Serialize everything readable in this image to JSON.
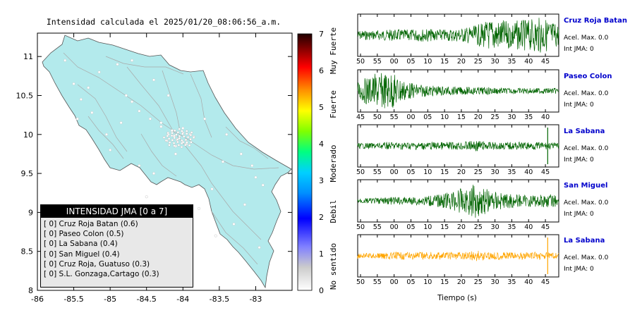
{
  "title": "Intensidad calculada el 2025/01/20_08:06:56_a.m.",
  "colorbar": {
    "ticks": [
      "0",
      "1",
      "2",
      "3",
      "4",
      "5",
      "6",
      "7"
    ],
    "categories": [
      "No sentido",
      "Debil",
      "Moderado",
      "Fuerte",
      "Muy Fuerte"
    ]
  },
  "legend": {
    "title": "INTENSIDAD JMA [0 a 7]",
    "items": [
      "[ 0] Cruz Roja Batan (0.6)",
      "[ 0] Paseo Colon (0.5)",
      "[ 0] La Sabana (0.4)",
      "[ 0] San Miguel (0.4)",
      "[ 0] Cruz Roja, Guatuso (0.3)",
      "[ 0] S.L. Gonzaga,Cartago (0.3)"
    ]
  },
  "stations": [
    {
      "name": "Cruz Roja Batan",
      "accel": "Acel. Max. 0.0",
      "jma": "Int JMA: 0",
      "color": "#006400",
      "ticks": [
        "50",
        "55",
        "00",
        "05",
        "10",
        "15",
        "20",
        "25",
        "30",
        "35",
        "40",
        "45"
      ],
      "t0": 48,
      "amp": [
        0.25,
        0.25,
        0.3,
        0.3,
        0.35,
        0.3,
        0.35,
        0.5,
        0.85,
        0.75,
        0.8,
        0.95,
        0.6
      ]
    },
    {
      "name": "Paseo Colon",
      "accel": "Acel. Max. 0.0",
      "jma": "Int JMA: 0",
      "color": "#006400",
      "ticks": [
        "45",
        "50",
        "55",
        "00",
        "05",
        "10",
        "15",
        "20",
        "25",
        "30",
        "35",
        "40"
      ],
      "t0": 45,
      "amp": [
        0.5,
        0.9,
        1.0,
        0.45,
        0.3,
        0.25,
        0.2,
        0.2,
        0.2,
        0.15,
        0.15,
        0.15,
        0.15
      ]
    },
    {
      "name": "La Sabana",
      "accel": "Acel. Max. 0.0",
      "jma": "Int JMA: 0",
      "color": "#006400",
      "ticks": [
        "50",
        "55",
        "00",
        "05",
        "10",
        "15",
        "20",
        "25",
        "30",
        "35",
        "40",
        "45"
      ],
      "t0": 48,
      "amp": [
        0.15,
        0.15,
        0.2,
        0.2,
        0.2,
        0.2,
        0.2,
        0.3,
        0.2,
        0.2,
        0.2,
        0.2,
        0.15
      ],
      "spike": 44.5
    },
    {
      "name": "San Miguel",
      "accel": "Acel. Max. 0.0",
      "jma": "Int JMA: 0",
      "color": "#006400",
      "ticks": [
        "50",
        "55",
        "00",
        "05",
        "10",
        "15",
        "20",
        "25",
        "30",
        "35",
        "40",
        "45"
      ],
      "t0": 48,
      "amp": [
        0.15,
        0.15,
        0.2,
        0.2,
        0.25,
        0.35,
        0.6,
        0.9,
        0.55,
        0.4,
        0.3,
        0.35,
        0.35
      ]
    },
    {
      "name": "La Sabana",
      "accel": "Acel. Max. 0.0",
      "jma": "Int JMA: 0",
      "color": "#ffa500",
      "ticks": [
        "50",
        "55",
        "00",
        "05",
        "10",
        "15",
        "20",
        "25",
        "30",
        "35",
        "40",
        "45"
      ],
      "t0": 48,
      "amp": [
        0.15,
        0.15,
        0.2,
        0.2,
        0.2,
        0.2,
        0.2,
        0.3,
        0.2,
        0.2,
        0.2,
        0.2,
        0.15
      ],
      "spike": 44.5
    }
  ],
  "xlabel": "Tiempo (s)",
  "chart_data": {
    "type": "scatter",
    "title": "Intensidad calculada el 2025/01/20_08:06:56_a.m.",
    "xlabel": "",
    "ylabel": "",
    "xlim": [
      -86,
      -82.5
    ],
    "ylim": [
      8,
      11.3
    ],
    "xticks": [
      "-86",
      "-85.5",
      "-85",
      "-84.5",
      "-84",
      "-83.5",
      "-83"
    ],
    "yticks": [
      "8",
      "8.5",
      "9",
      "9.5",
      "10",
      "10.5",
      "11"
    ],
    "series": [
      {
        "x": [
          -84.08,
          -84.05,
          -84.12,
          -84.0,
          -83.95,
          -84.2,
          -84.15,
          -84.0,
          -83.9,
          -84.1,
          -84.3,
          -84.45,
          -84.6,
          -84.78,
          -85.3,
          -85.15,
          -84.9,
          -84.7,
          -84.4,
          -83.7,
          -83.4,
          -83.2,
          -83.05,
          -83.0,
          -82.9,
          -83.6,
          -84.5,
          -85.0,
          -85.45,
          -85.5,
          -85.62,
          -85.4,
          -84.85,
          -84.6,
          -84.4,
          -83.78,
          -83.3,
          -83.55,
          -84.1,
          -84.22,
          -84.0,
          -83.85,
          -84.3,
          -84.7,
          -85.05,
          -85.25,
          -84.2,
          -83.45,
          -83.15,
          -82.95
        ],
        "y": [
          9.93,
          9.95,
          9.98,
          9.9,
          9.88,
          10.0,
          10.05,
          10.08,
          10.0,
          9.85,
          10.1,
          10.2,
          10.3,
          10.5,
          10.6,
          10.8,
          10.9,
          10.95,
          10.7,
          10.2,
          10.0,
          9.75,
          9.6,
          9.45,
          9.35,
          9.3,
          9.2,
          9.8,
          10.2,
          10.65,
          10.95,
          10.45,
          10.15,
          9.6,
          9.5,
          9.05,
          8.85,
          8.7,
          9.75,
          9.92,
          10.02,
          9.97,
          10.15,
          10.42,
          10.0,
          10.28,
          10.5,
          9.65,
          9.1,
          8.55
        ]
      }
    ]
  }
}
